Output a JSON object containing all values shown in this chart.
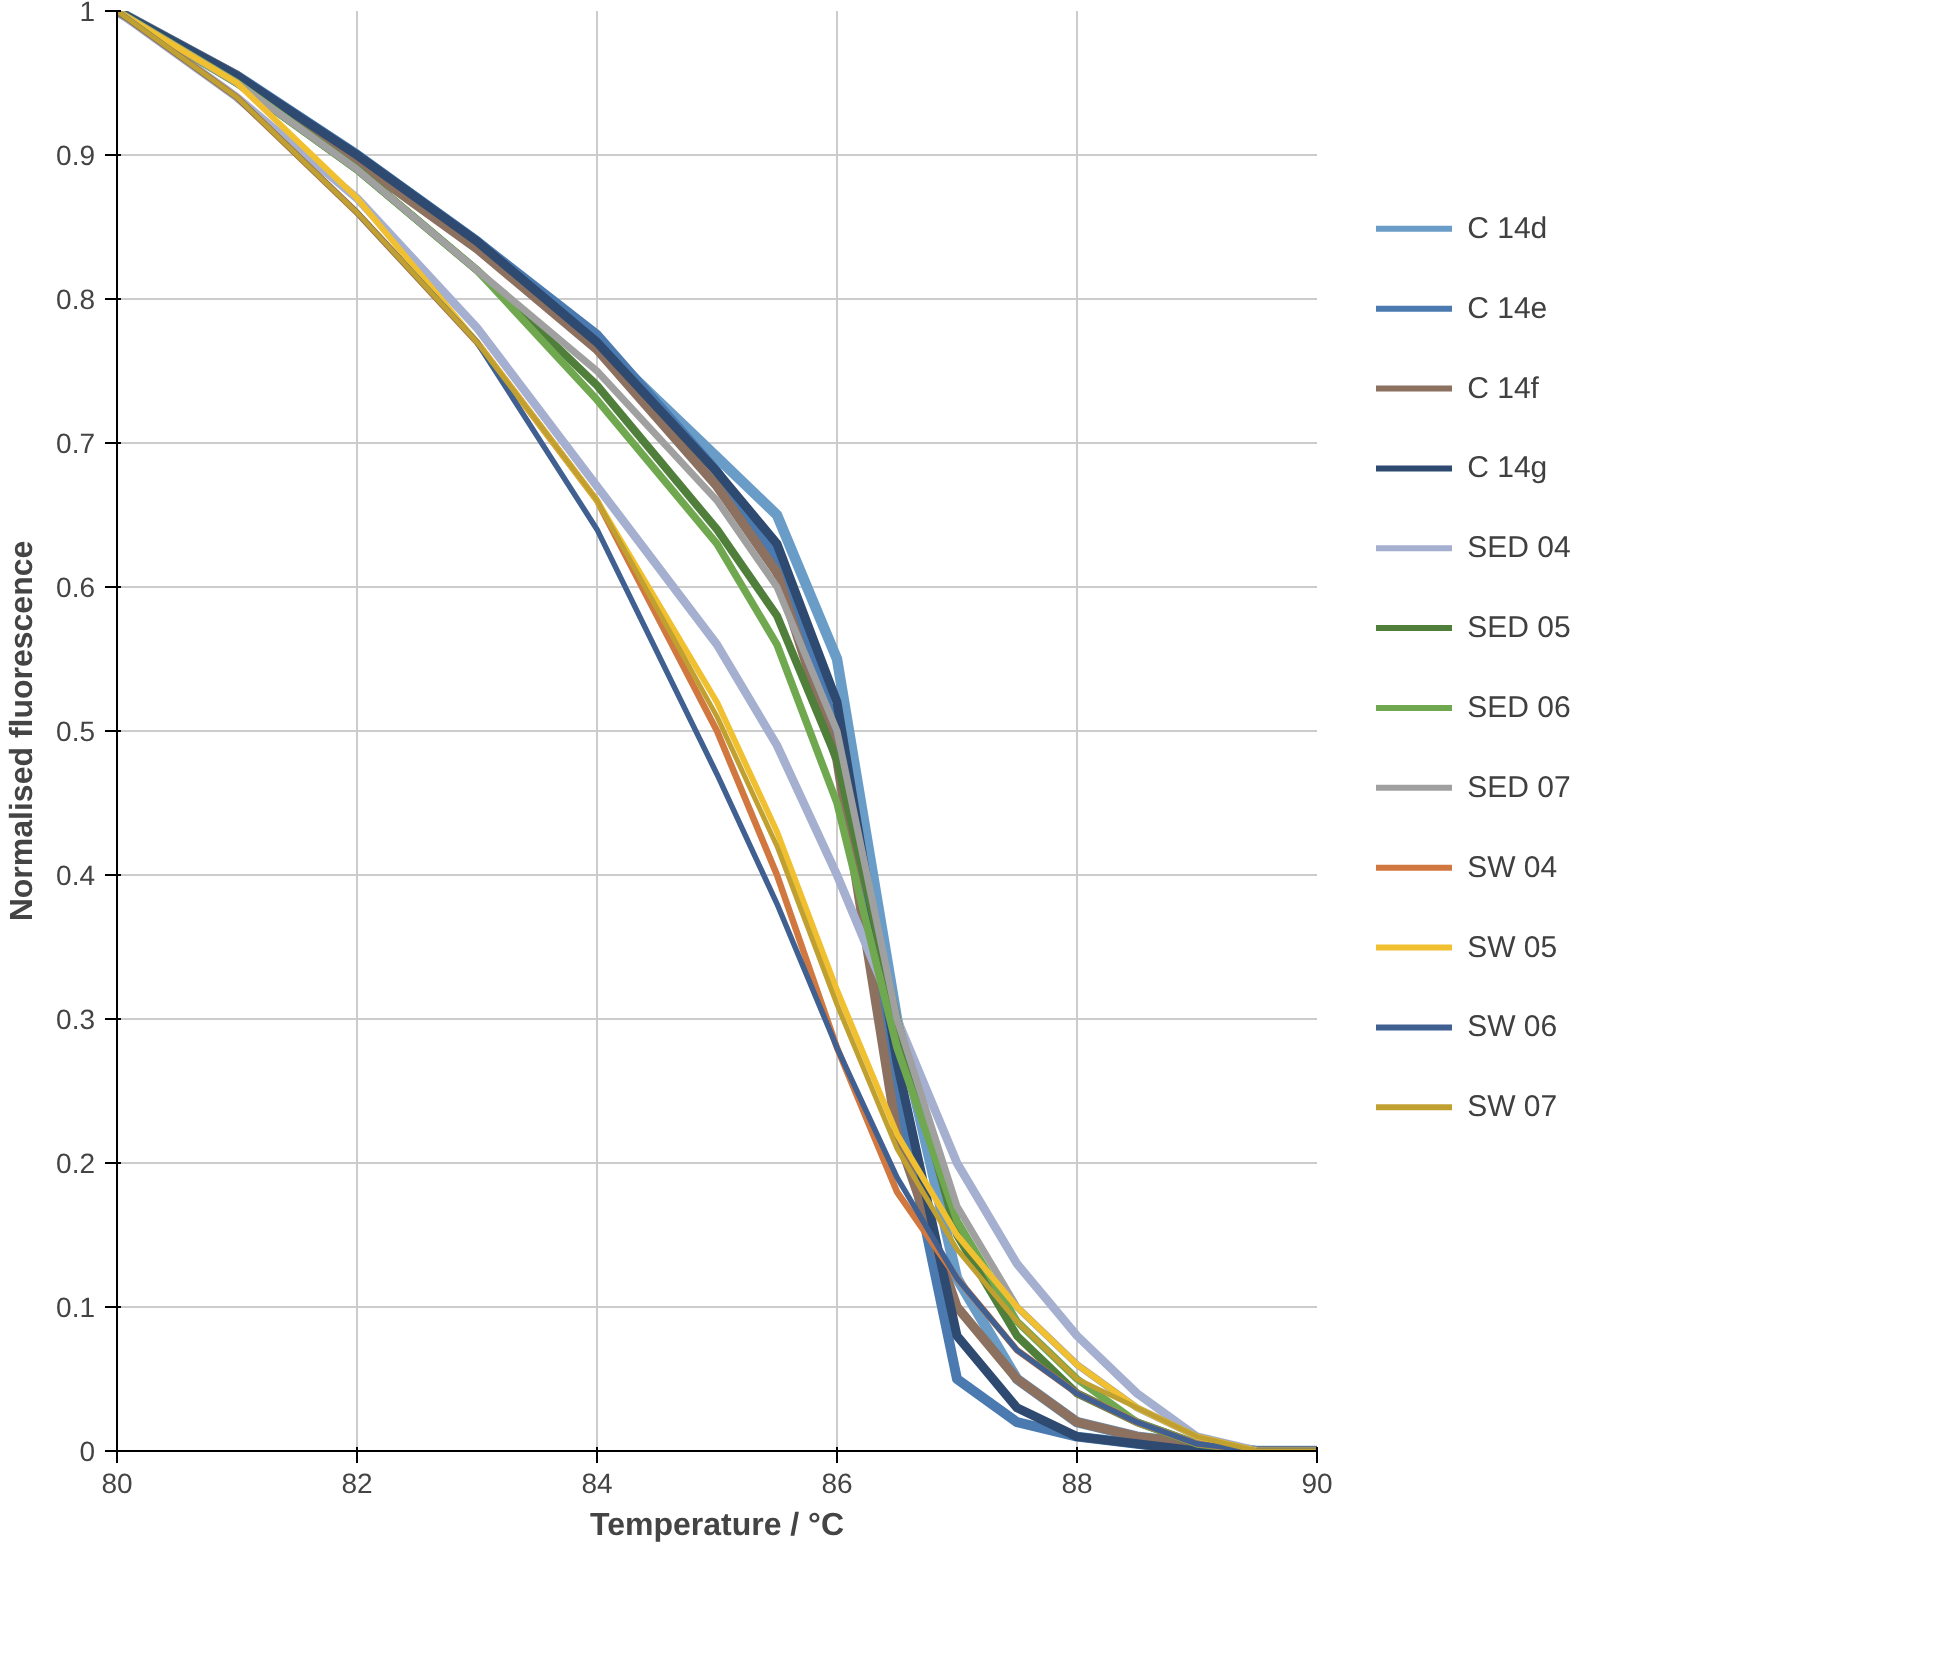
{
  "chart_data": {
    "type": "line",
    "xlabel": "Temperature / °C",
    "ylabel": "Normalised fluorescence",
    "x": [
      80,
      81,
      82,
      83,
      84,
      85,
      85.5,
      86,
      86.5,
      87,
      87.5,
      88,
      88.5,
      89,
      89.5,
      90
    ],
    "xlim": [
      80,
      90
    ],
    "xticks": [
      80,
      82,
      84,
      86,
      88,
      90
    ],
    "ylim": [
      0,
      1
    ],
    "yticks": [
      0,
      0.1,
      0.2,
      0.3,
      0.4,
      0.5,
      0.6,
      0.7,
      0.8,
      0.9,
      1
    ],
    "grid": true,
    "legend": "right",
    "marker": "none",
    "line_style": "solid",
    "series": [
      {
        "name": "C 14d",
        "color": "#6a9cc8",
        "values": [
          1,
          0.955,
          0.9,
          0.84,
          0.77,
          0.69,
          0.65,
          0.55,
          0.3,
          0.12,
          0.05,
          0.02,
          0.01,
          0.005,
          0,
          0
        ]
      },
      {
        "name": "C 14e",
        "color": "#4a7ab0",
        "values": [
          1,
          0.955,
          0.9,
          0.84,
          0.775,
          0.68,
          0.62,
          0.5,
          0.25,
          0.05,
          0.02,
          0.01,
          0.005,
          0,
          0,
          0
        ]
      },
      {
        "name": "C 14f",
        "color": "#8c7060",
        "values": [
          1,
          0.955,
          0.895,
          0.835,
          0.765,
          0.67,
          0.61,
          0.48,
          0.22,
          0.1,
          0.05,
          0.02,
          0.01,
          0.005,
          0,
          0
        ]
      },
      {
        "name": "C 14g",
        "color": "#2f4a70",
        "values": [
          1,
          0.955,
          0.9,
          0.84,
          0.77,
          0.68,
          0.63,
          0.52,
          0.27,
          0.08,
          0.03,
          0.01,
          0.005,
          0,
          0,
          0
        ]
      },
      {
        "name": "SED 04",
        "color": "#a5b0d0",
        "values": [
          1,
          0.94,
          0.87,
          0.78,
          0.67,
          0.56,
          0.49,
          0.4,
          0.3,
          0.2,
          0.13,
          0.08,
          0.04,
          0.01,
          0,
          0
        ]
      },
      {
        "name": "SED 05",
        "color": "#4f7f3a",
        "values": [
          1,
          0.95,
          0.89,
          0.82,
          0.74,
          0.64,
          0.58,
          0.48,
          0.3,
          0.15,
          0.08,
          0.04,
          0.02,
          0.005,
          0,
          0
        ]
      },
      {
        "name": "SED 06",
        "color": "#70a850",
        "values": [
          1,
          0.95,
          0.89,
          0.82,
          0.73,
          0.63,
          0.56,
          0.45,
          0.28,
          0.16,
          0.09,
          0.05,
          0.02,
          0.005,
          0,
          0
        ]
      },
      {
        "name": "SED 07",
        "color": "#a0a0a0",
        "values": [
          1,
          0.95,
          0.89,
          0.82,
          0.75,
          0.66,
          0.6,
          0.5,
          0.3,
          0.17,
          0.1,
          0.06,
          0.03,
          0.01,
          0,
          0
        ]
      },
      {
        "name": "SW 04",
        "color": "#d07840",
        "values": [
          1,
          0.94,
          0.86,
          0.77,
          0.66,
          0.5,
          0.4,
          0.28,
          0.18,
          0.12,
          0.07,
          0.04,
          0.02,
          0.005,
          0,
          0
        ]
      },
      {
        "name": "SW 05",
        "color": "#f0c030",
        "values": [
          1,
          0.95,
          0.87,
          0.77,
          0.66,
          0.52,
          0.43,
          0.32,
          0.22,
          0.15,
          0.1,
          0.06,
          0.03,
          0.01,
          0,
          0
        ]
      },
      {
        "name": "SW 06",
        "color": "#3f6090",
        "values": [
          1,
          0.94,
          0.86,
          0.77,
          0.64,
          0.47,
          0.38,
          0.28,
          0.19,
          0.12,
          0.07,
          0.04,
          0.02,
          0.005,
          0,
          0
        ]
      },
      {
        "name": "SW 07",
        "color": "#c0a030",
        "values": [
          1,
          0.94,
          0.86,
          0.77,
          0.66,
          0.51,
          0.42,
          0.31,
          0.21,
          0.14,
          0.09,
          0.05,
          0.03,
          0.01,
          0,
          0
        ]
      }
    ]
  }
}
